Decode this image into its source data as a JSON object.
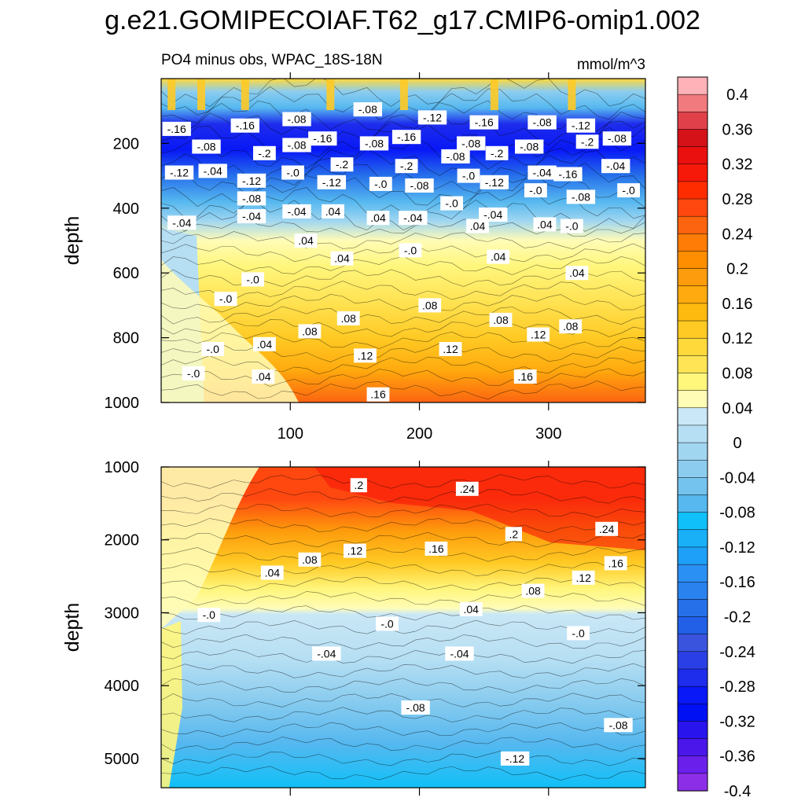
{
  "figure": {
    "title": "g.e21.GOMIPECOIAF.T62_g17.CMIP6-omip1.002"
  },
  "chart_data": [
    {
      "type": "heatmap",
      "panel": "upper",
      "left_string": "PO4 minus obs, WPAC_18S-18N",
      "right_string": "mmol/m^3",
      "xlabel": "",
      "ylabel": "depth",
      "xlim": [
        0,
        375
      ],
      "ylim": [
        0,
        1000
      ],
      "y_reversed": true,
      "x_ticks": [
        "100",
        "200",
        "300"
      ],
      "y_ticks": [
        "200",
        "400",
        "600",
        "800",
        "1000"
      ],
      "contour_interval": 0.02,
      "description_values": {
        "surface_0_100m": 0.04,
        "thermocline_150_300m_min": -0.22,
        "at_400m": -0.08,
        "at_600m": 0.04,
        "at_800m": 0.08,
        "at_1000m_east": 0.18
      },
      "contour_labels": [
        {
          "text": "-.16",
          "x": 12,
          "y": 155
        },
        {
          "text": "-.16",
          "x": 65,
          "y": 145
        },
        {
          "text": "-.08",
          "x": 105,
          "y": 125
        },
        {
          "text": "-.08",
          "x": 160,
          "y": 95
        },
        {
          "text": "-.12",
          "x": 210,
          "y": 120
        },
        {
          "text": "-.16",
          "x": 250,
          "y": 135
        },
        {
          "text": "-.08",
          "x": 295,
          "y": 135
        },
        {
          "text": "-.12",
          "x": 325,
          "y": 145
        },
        {
          "text": "-.08",
          "x": 35,
          "y": 210
        },
        {
          "text": "-.2",
          "x": 80,
          "y": 230
        },
        {
          "text": "-.08",
          "x": 105,
          "y": 205
        },
        {
          "text": "-.16",
          "x": 125,
          "y": 185
        },
        {
          "text": "-.08",
          "x": 165,
          "y": 200
        },
        {
          "text": "-.16",
          "x": 190,
          "y": 180
        },
        {
          "text": "-.08",
          "x": 240,
          "y": 200
        },
        {
          "text": "-.2",
          "x": 260,
          "y": 230
        },
        {
          "text": "-.08",
          "x": 285,
          "y": 210
        },
        {
          "text": "-.2",
          "x": 330,
          "y": 195
        },
        {
          "text": "-.08",
          "x": 353,
          "y": 185
        },
        {
          "text": "-.12",
          "x": 14,
          "y": 290
        },
        {
          "text": "-.04",
          "x": 40,
          "y": 285
        },
        {
          "text": "-.0",
          "x": 102,
          "y": 290
        },
        {
          "text": "-.2",
          "x": 140,
          "y": 265
        },
        {
          "text": "-.2",
          "x": 190,
          "y": 270
        },
        {
          "text": "-.08",
          "x": 228,
          "y": 240
        },
        {
          "text": "-.04",
          "x": 295,
          "y": 290
        },
        {
          "text": "-.16",
          "x": 315,
          "y": 295
        },
        {
          "text": "-.04",
          "x": 352,
          "y": 270
        },
        {
          "text": "-.12",
          "x": 70,
          "y": 315
        },
        {
          "text": "-.12",
          "x": 132,
          "y": 320
        },
        {
          "text": "-.0",
          "x": 170,
          "y": 325
        },
        {
          "text": "-.08",
          "x": 200,
          "y": 330
        },
        {
          "text": "-.0",
          "x": 238,
          "y": 300
        },
        {
          "text": "-.12",
          "x": 258,
          "y": 320
        },
        {
          "text": "-.0",
          "x": 290,
          "y": 345
        },
        {
          "text": "-.08",
          "x": 325,
          "y": 365
        },
        {
          "text": "-.0",
          "x": 362,
          "y": 345
        },
        {
          "text": "-.08",
          "x": 70,
          "y": 370
        },
        {
          "text": "-.04",
          "x": 16,
          "y": 445
        },
        {
          "text": "-.04",
          "x": 70,
          "y": 425
        },
        {
          "text": "-.04",
          "x": 105,
          "y": 410
        },
        {
          "text": ".04",
          "x": 133,
          "y": 410
        },
        {
          "text": ".04",
          "x": 168,
          "y": 430
        },
        {
          "text": "-.04",
          "x": 195,
          "y": 430
        },
        {
          "text": "-.0",
          "x": 225,
          "y": 385
        },
        {
          "text": ".04",
          "x": 245,
          "y": 455
        },
        {
          "text": "-.04",
          "x": 257,
          "y": 420
        },
        {
          "text": ".04",
          "x": 297,
          "y": 450
        },
        {
          "text": "-.0",
          "x": 318,
          "y": 455
        },
        {
          "text": "-.0",
          "x": 50,
          "y": 680
        },
        {
          "text": ".04",
          "x": 112,
          "y": 500
        },
        {
          "text": ".04",
          "x": 140,
          "y": 555
        },
        {
          "text": "-.0",
          "x": 71,
          "y": 620
        },
        {
          "text": "-.0",
          "x": 193,
          "y": 530
        },
        {
          "text": ".04",
          "x": 261,
          "y": 550
        },
        {
          "text": ".04",
          "x": 322,
          "y": 600
        },
        {
          "text": "-.0",
          "x": 40,
          "y": 835
        },
        {
          "text": "-.0",
          "x": 25,
          "y": 910
        },
        {
          "text": ".04",
          "x": 79,
          "y": 920
        },
        {
          "text": ".04",
          "x": 80,
          "y": 820
        },
        {
          "text": ".08",
          "x": 115,
          "y": 780
        },
        {
          "text": ".08",
          "x": 145,
          "y": 740
        },
        {
          "text": ".08",
          "x": 208,
          "y": 700
        },
        {
          "text": ".08",
          "x": 263,
          "y": 745
        },
        {
          "text": ".12",
          "x": 292,
          "y": 790
        },
        {
          "text": ".08",
          "x": 317,
          "y": 765
        },
        {
          "text": ".12",
          "x": 158,
          "y": 855
        },
        {
          "text": ".12",
          "x": 224,
          "y": 835
        },
        {
          "text": ".16",
          "x": 282,
          "y": 920
        },
        {
          "text": ".16",
          "x": 168,
          "y": 975
        }
      ]
    },
    {
      "type": "heatmap",
      "panel": "lower",
      "xlabel": "",
      "ylabel": "depth",
      "xlim": [
        0,
        375
      ],
      "ylim": [
        1000,
        5400
      ],
      "y_reversed": true,
      "y_ticks": [
        "1000",
        "2000",
        "3000",
        "4000",
        "5000"
      ],
      "contour_interval": 0.02,
      "description_values": {
        "core_1200_1800m_east": 0.25,
        "at_2500m": 0.08,
        "zero_line_depth_m": 3100,
        "at_4000m": -0.06,
        "bottom_5200m_east": -0.14
      },
      "contour_labels": [
        {
          "text": ".2",
          "x": 153,
          "y": 1250
        },
        {
          "text": ".24",
          "x": 237,
          "y": 1300
        },
        {
          "text": ".2",
          "x": 273,
          "y": 1920
        },
        {
          "text": ".24",
          "x": 345,
          "y": 1850
        },
        {
          "text": ".16",
          "x": 213,
          "y": 2120
        },
        {
          "text": ".12",
          "x": 150,
          "y": 2150
        },
        {
          "text": ".08",
          "x": 115,
          "y": 2270
        },
        {
          "text": ".04",
          "x": 86,
          "y": 2450
        },
        {
          "text": ".16",
          "x": 352,
          "y": 2320
        },
        {
          "text": ".12",
          "x": 327,
          "y": 2520
        },
        {
          "text": ".08",
          "x": 288,
          "y": 2700
        },
        {
          "text": ".04",
          "x": 240,
          "y": 2950
        },
        {
          "text": "-.0",
          "x": 37,
          "y": 3030
        },
        {
          "text": "-.0",
          "x": 175,
          "y": 3150
        },
        {
          "text": "-.0",
          "x": 323,
          "y": 3280
        },
        {
          "text": "-.04",
          "x": 128,
          "y": 3560
        },
        {
          "text": "-.04",
          "x": 231,
          "y": 3560
        },
        {
          "text": "-.08",
          "x": 197,
          "y": 4300
        },
        {
          "text": "-.08",
          "x": 354,
          "y": 4540
        },
        {
          "text": "-.12",
          "x": 274,
          "y": 5000
        }
      ]
    }
  ],
  "colorbar": {
    "labels": [
      "0.4",
      "0.36",
      "0.32",
      "0.28",
      "0.24",
      "0.2",
      "0.16",
      "0.12",
      "0.08",
      "0.04",
      "0",
      "-0.04",
      "-0.08",
      "-0.12",
      "-0.16",
      "-0.2",
      "-0.24",
      "-0.28",
      "-0.32",
      "-0.36",
      "-0.4"
    ],
    "colors": [
      "#ffb2b8",
      "#f07a7e",
      "#e0404a",
      "#d41218",
      "#ea1010",
      "#f61808",
      "#ff2c00",
      "#ff4810",
      "#fc6410",
      "#ff7c06",
      "#ff8e00",
      "#fd9c0c",
      "#ffaa0e",
      "#ffba10",
      "#ffca24",
      "#ffd83a",
      "#ffe456",
      "#fff67c",
      "#fffcb6",
      "#c9e7f6",
      "#b6dff3",
      "#a1d6f1",
      "#8ccdef",
      "#74c3ef",
      "#56b8ef",
      "#10c0f8",
      "#1ab0f8",
      "#1ea0f8",
      "#2b90f4",
      "#2a82ee",
      "#2670ea",
      "#2260e8",
      "#3a54de",
      "#2a40e6",
      "#1e2cec",
      "#0818f6",
      "#0010f4",
      "#2a14ee",
      "#4a16ea",
      "#6a20ea",
      "#8c2ee8"
    ]
  }
}
